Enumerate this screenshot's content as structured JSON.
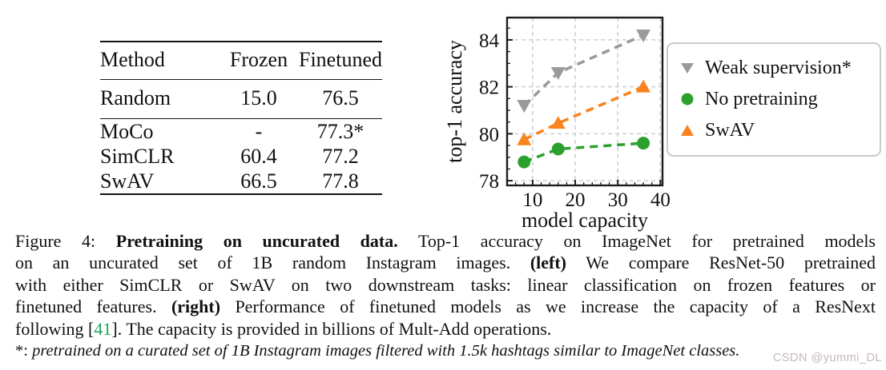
{
  "table": {
    "columns": [
      "Method",
      "Frozen",
      "Finetuned"
    ],
    "rows": [
      {
        "cells": [
          "Random",
          "15.0",
          "76.5"
        ],
        "bold": [
          false,
          false,
          false
        ],
        "rule_below": true,
        "wide": true
      },
      {
        "cells": [
          "MoCo",
          "-",
          "77.3*"
        ],
        "bold": [
          false,
          false,
          false
        ],
        "rule_below": false,
        "wide": false
      },
      {
        "cells": [
          "SimCLR",
          "60.4",
          "77.2"
        ],
        "bold": [
          false,
          false,
          false
        ],
        "rule_below": false,
        "wide": false
      },
      {
        "cells": [
          "SwAV",
          "66.5",
          "77.8"
        ],
        "bold": [
          false,
          true,
          true
        ],
        "rule_below": false,
        "wide": false
      }
    ]
  },
  "chart_data": {
    "type": "line",
    "title": "",
    "xlabel": "model capacity",
    "ylabel": "top-1 accuracy",
    "xlim": [
      4,
      40.5
    ],
    "ylim": [
      77.8,
      84.95
    ],
    "xticks": [
      10,
      20,
      30,
      40
    ],
    "yticks": [
      78,
      80,
      82,
      84
    ],
    "x_minor_step": 2,
    "y_minor_step": 0.5,
    "grid": true,
    "grid_style": "dashed",
    "legend_position": "outside-right",
    "x": [
      8,
      16,
      36
    ],
    "series": [
      {
        "name": "Weak supervision*",
        "marker": "triangle-down",
        "color": "#9a9a9a",
        "values": [
          81.2,
          82.6,
          84.2
        ]
      },
      {
        "name": "No pretraining",
        "marker": "circle",
        "color": "#2ca02c",
        "values": [
          78.8,
          79.35,
          79.6
        ]
      },
      {
        "name": "SwAV",
        "marker": "triangle-up",
        "color": "#f9831e",
        "values": [
          79.75,
          80.45,
          82.0
        ]
      }
    ]
  },
  "caption": {
    "lines": [
      {
        "justify": true,
        "footnote": false,
        "segments": [
          {
            "text": "Figure 4: "
          },
          {
            "text": "Pretraining on uncurated data.",
            "bold": true
          },
          {
            "text": "  Top-1 accuracy on ImageNet for pretrained models"
          }
        ]
      },
      {
        "justify": true,
        "footnote": false,
        "segments": [
          {
            "text": "on an uncurated set of 1B random Instagram images.  "
          },
          {
            "text": "(left)",
            "bold": true
          },
          {
            "text": " We compare ResNet-50 pretrained"
          }
        ]
      },
      {
        "justify": true,
        "footnote": false,
        "segments": [
          {
            "text": "with either SimCLR or SwAV on two downstream tasks: linear classification on frozen features or"
          }
        ]
      },
      {
        "justify": true,
        "footnote": false,
        "segments": [
          {
            "text": "finetuned features. "
          },
          {
            "text": "(right)",
            "bold": true
          },
          {
            "text": " Performance of finetuned models as we increase the capacity of a ResNext"
          }
        ]
      },
      {
        "justify": false,
        "footnote": false,
        "segments": [
          {
            "text": "following ["
          },
          {
            "text": "41",
            "color": "#1fa35b"
          },
          {
            "text": "]. The capacity is provided in billions of Mult-Add operations."
          }
        ]
      },
      {
        "justify": false,
        "footnote": true,
        "segments": [
          {
            "text": "*: "
          },
          {
            "text": "pretrained on a curated set of 1B Instagram images filtered with 1.5k hashtags similar to ImageNet classes.",
            "italic": true
          }
        ]
      }
    ]
  },
  "watermark": "CSDN @yummi_DL",
  "colors": {
    "axis": "#1c1c1c",
    "grid": "#cfcfcf",
    "citation_green": "#1fa35b"
  }
}
